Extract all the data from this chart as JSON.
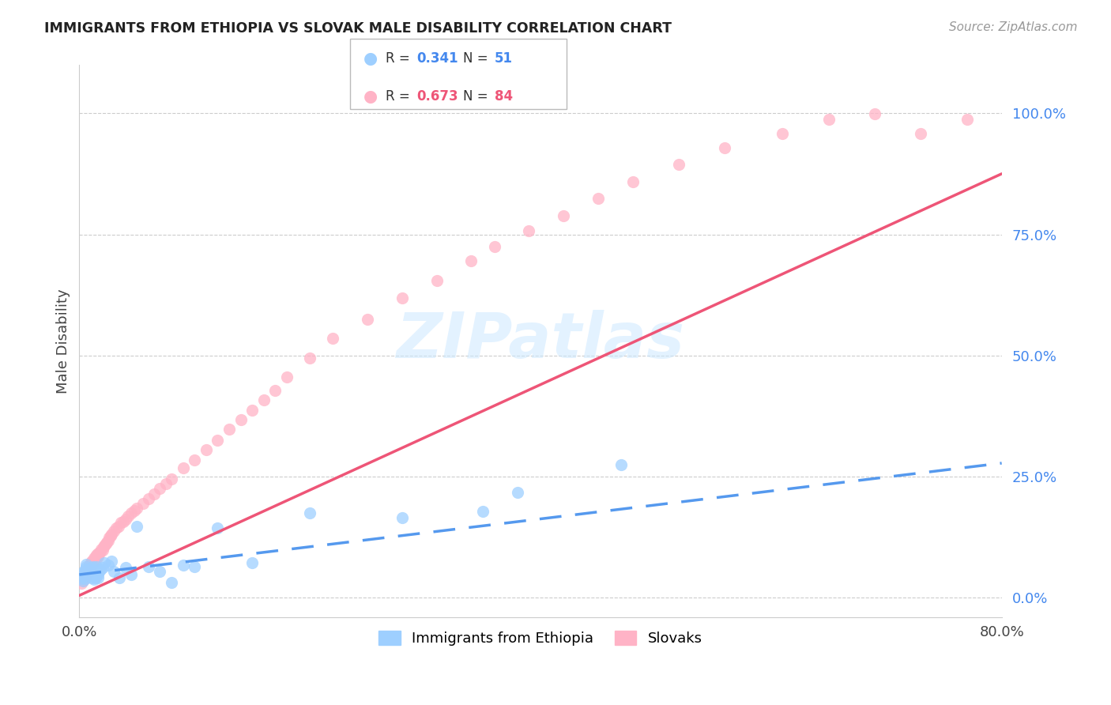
{
  "title": "IMMIGRANTS FROM ETHIOPIA VS SLOVAK MALE DISABILITY CORRELATION CHART",
  "source": "Source: ZipAtlas.com",
  "ylabel": "Male Disability",
  "xmin": 0.0,
  "xmax": 0.8,
  "ymin": -0.04,
  "ymax": 1.1,
  "yticks": [
    0.0,
    0.25,
    0.5,
    0.75,
    1.0
  ],
  "ytick_labels": [
    "0.0%",
    "25.0%",
    "50.0%",
    "75.0%",
    "100.0%"
  ],
  "color_blue": "#9ECFFF",
  "color_pink": "#FFB3C6",
  "color_blue_line": "#5599EE",
  "color_pink_line": "#EE5577",
  "color_blue_text": "#4488EE",
  "color_pink_text": "#EE5577",
  "watermark": "ZIPatlas",
  "ethiopia_x": [
    0.002,
    0.003,
    0.003,
    0.004,
    0.004,
    0.005,
    0.005,
    0.006,
    0.006,
    0.007,
    0.007,
    0.008,
    0.008,
    0.009,
    0.009,
    0.01,
    0.01,
    0.011,
    0.011,
    0.012,
    0.012,
    0.013,
    0.013,
    0.014,
    0.015,
    0.015,
    0.016,
    0.016,
    0.017,
    0.018,
    0.02,
    0.022,
    0.025,
    0.028,
    0.03,
    0.035,
    0.04,
    0.045,
    0.05,
    0.06,
    0.07,
    0.08,
    0.09,
    0.1,
    0.12,
    0.15,
    0.2,
    0.28,
    0.35,
    0.38,
    0.47
  ],
  "ethiopia_y": [
    0.04,
    0.05,
    0.035,
    0.045,
    0.055,
    0.06,
    0.04,
    0.065,
    0.07,
    0.048,
    0.055,
    0.052,
    0.06,
    0.045,
    0.055,
    0.058,
    0.048,
    0.062,
    0.042,
    0.065,
    0.052,
    0.038,
    0.048,
    0.042,
    0.065,
    0.055,
    0.042,
    0.048,
    0.055,
    0.058,
    0.062,
    0.072,
    0.068,
    0.075,
    0.055,
    0.042,
    0.062,
    0.048,
    0.148,
    0.065,
    0.055,
    0.032,
    0.068,
    0.065,
    0.145,
    0.072,
    0.175,
    0.165,
    0.178,
    0.218,
    0.275
  ],
  "slovak_x": [
    0.002,
    0.003,
    0.003,
    0.004,
    0.005,
    0.005,
    0.006,
    0.006,
    0.007,
    0.007,
    0.008,
    0.008,
    0.009,
    0.009,
    0.01,
    0.01,
    0.011,
    0.011,
    0.012,
    0.012,
    0.013,
    0.013,
    0.014,
    0.014,
    0.015,
    0.015,
    0.016,
    0.016,
    0.017,
    0.018,
    0.019,
    0.02,
    0.021,
    0.022,
    0.023,
    0.024,
    0.025,
    0.026,
    0.027,
    0.028,
    0.03,
    0.032,
    0.034,
    0.036,
    0.038,
    0.04,
    0.042,
    0.045,
    0.048,
    0.05,
    0.055,
    0.06,
    0.065,
    0.07,
    0.075,
    0.08,
    0.09,
    0.1,
    0.11,
    0.12,
    0.13,
    0.14,
    0.15,
    0.16,
    0.17,
    0.18,
    0.2,
    0.22,
    0.25,
    0.28,
    0.31,
    0.34,
    0.36,
    0.39,
    0.42,
    0.45,
    0.48,
    0.52,
    0.56,
    0.61,
    0.65,
    0.69,
    0.73,
    0.77
  ],
  "slovak_y": [
    0.03,
    0.035,
    0.042,
    0.04,
    0.045,
    0.05,
    0.048,
    0.055,
    0.052,
    0.058,
    0.06,
    0.065,
    0.062,
    0.068,
    0.065,
    0.072,
    0.07,
    0.075,
    0.072,
    0.078,
    0.075,
    0.082,
    0.08,
    0.085,
    0.082,
    0.088,
    0.085,
    0.092,
    0.09,
    0.095,
    0.1,
    0.098,
    0.105,
    0.108,
    0.112,
    0.115,
    0.118,
    0.125,
    0.128,
    0.132,
    0.138,
    0.145,
    0.148,
    0.155,
    0.158,
    0.162,
    0.168,
    0.175,
    0.18,
    0.185,
    0.195,
    0.205,
    0.215,
    0.225,
    0.235,
    0.245,
    0.268,
    0.285,
    0.305,
    0.325,
    0.348,
    0.368,
    0.388,
    0.408,
    0.428,
    0.455,
    0.495,
    0.535,
    0.575,
    0.618,
    0.655,
    0.695,
    0.725,
    0.758,
    0.788,
    0.825,
    0.858,
    0.895,
    0.928,
    0.958,
    0.988,
    0.998,
    0.958,
    0.988
  ],
  "pink_line_x0": 0.0,
  "pink_line_y0": 0.005,
  "pink_line_x1": 0.8,
  "pink_line_y1": 0.875,
  "blue_line_x0": 0.0,
  "blue_line_y0": 0.048,
  "blue_line_x1": 0.8,
  "blue_line_y1": 0.278
}
